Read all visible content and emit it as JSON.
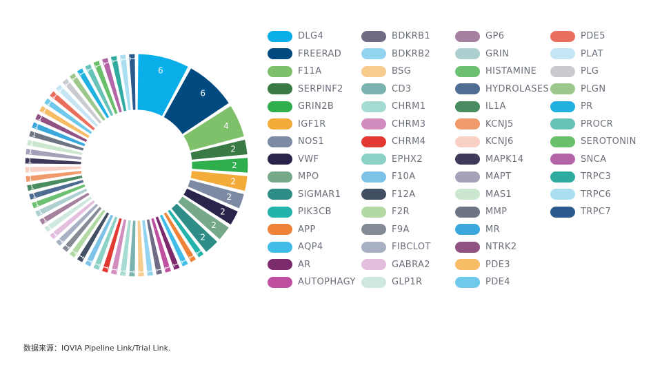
{
  "chart_data": {
    "type": "pie",
    "variant": "donut",
    "categories": [
      "DLG4",
      "FREERAD",
      "F11A",
      "SERPINF2",
      "GRIN2B",
      "IGF1R",
      "NOS1",
      "VWF",
      "MPO",
      "SIGMAR1",
      "PIK3CB",
      "APP",
      "AQP4",
      "AR",
      "AUTOPHAGY",
      "BDKRB1",
      "BDKRB2",
      "BSG",
      "CD3",
      "CHRM1",
      "CHRM3",
      "CHRM4",
      "EPHX2",
      "F10A",
      "F12A",
      "F2R",
      "F9A",
      "FIBCLOT",
      "GABRA2",
      "GLP1R",
      "GP6",
      "GRIN",
      "HISTAMINE",
      "HYDROLASES",
      "IL1A",
      "KCNJ5",
      "KCNJ6",
      "MAPK14",
      "MAPT",
      "MAS1",
      "MMP",
      "MR",
      "NTRK2",
      "PDE3",
      "PDE4",
      "PDE5",
      "PLAT",
      "PLG",
      "PLGN",
      "PR",
      "PROCR",
      "SEROTONIN",
      "SNCA",
      "TRPC3",
      "TRPC6",
      "TRPC7"
    ],
    "values": [
      6,
      6,
      4,
      2,
      2,
      2,
      2,
      2,
      2,
      2,
      1,
      1,
      1,
      1,
      1,
      1,
      1,
      1,
      1,
      1,
      1,
      1,
      1,
      1,
      1,
      1,
      1,
      1,
      1,
      1,
      1,
      1,
      1,
      1,
      1,
      1,
      1,
      1,
      1,
      1,
      1,
      1,
      1,
      1,
      1,
      1,
      1,
      1,
      1,
      1,
      1,
      1,
      1,
      1,
      1,
      1
    ],
    "colors": [
      "#0aaee8",
      "#004a7f",
      "#7fc06a",
      "#3a7a45",
      "#2fae4d",
      "#f3ac39",
      "#7c8aa4",
      "#2a234b",
      "#76a88a",
      "#2e8d87",
      "#23b3ab",
      "#ee8338",
      "#3fbde8",
      "#7b2a6c",
      "#bf4f9f",
      "#6e6b85",
      "#92d3ef",
      "#f8cb8e",
      "#7bb3b0",
      "#a5dbd0",
      "#d08dbe",
      "#e23a33",
      "#8bd1c6",
      "#7dc3e7",
      "#434f63",
      "#b2d9a3",
      "#858b95",
      "#a8b1c3",
      "#e3bedf",
      "#cfe8df",
      "#a5809f",
      "#aecfcf",
      "#6dbf72",
      "#4f6c93",
      "#4a8c61",
      "#f0996a",
      "#f8d1c4",
      "#403a5a",
      "#a4a1b8",
      "#cce7cf",
      "#6d7484",
      "#3aa8db",
      "#8f5282",
      "#f6bc66",
      "#6ec9ea",
      "#ea6e5c",
      "#c6e5f4",
      "#c9cbce",
      "#9cc98b",
      "#21b1e0",
      "#67c2b8",
      "#69bf6a",
      "#b365a7",
      "#30ab9f",
      "#a9dff0",
      "#2a5a8d"
    ],
    "legend_position": "right",
    "source": "数据来源：IQVIA Pipeline Link/Trial Link."
  }
}
